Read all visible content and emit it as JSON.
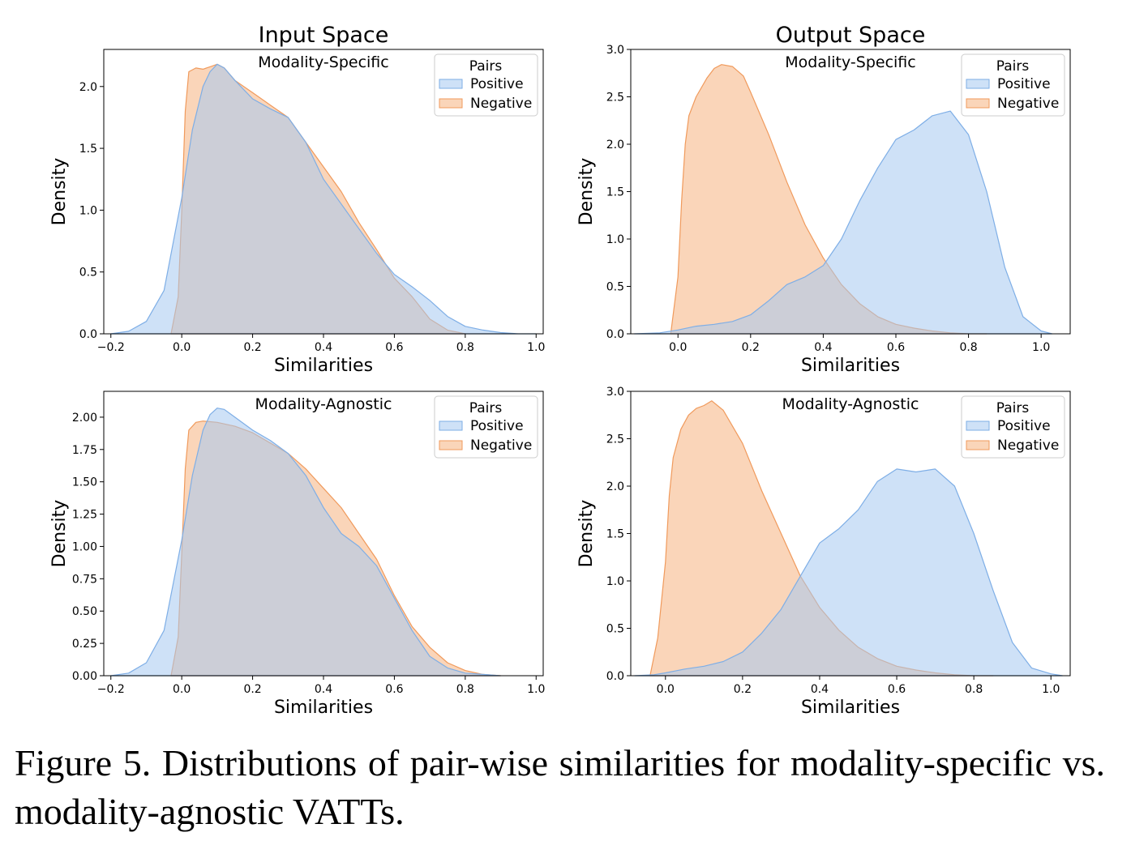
{
  "column_titles": [
    "Input Space",
    "Output Space"
  ],
  "caption": "Figure 5. Distributions of pair-wise similarities for modality-specific vs. modality-agnostic VATTs.",
  "colors": {
    "positive_fill": "#a6c8f0",
    "positive_edge": "#7eaee6",
    "negative_fill": "#f7b98a",
    "negative_edge": "#f09a5c"
  },
  "chart_data": [
    {
      "type": "area",
      "panel": "input-specific",
      "column_title": "Input Space",
      "title": "Modality-Specific",
      "xlabel": "Similarities",
      "ylabel": "Density",
      "xlim": [
        -0.22,
        1.02
      ],
      "ylim": [
        0,
        2.3
      ],
      "xticks": [
        -0.2,
        0.0,
        0.2,
        0.4,
        0.6,
        0.8,
        1.0
      ],
      "xtick_labels": [
        "−0.2",
        "0.0",
        "0.2",
        "0.4",
        "0.6",
        "0.8",
        "1.0"
      ],
      "yticks": [
        0.0,
        0.5,
        1.0,
        1.5,
        2.0
      ],
      "ytick_labels": [
        "0.0",
        "0.5",
        "1.0",
        "1.5",
        "2.0"
      ],
      "legend": {
        "title": "Pairs",
        "position": "upper right"
      },
      "series": [
        {
          "name": "Positive",
          "x": [
            -0.2,
            -0.15,
            -0.1,
            -0.05,
            0.0,
            0.03,
            0.06,
            0.08,
            0.1,
            0.12,
            0.15,
            0.2,
            0.25,
            0.3,
            0.35,
            0.4,
            0.45,
            0.5,
            0.55,
            0.6,
            0.65,
            0.7,
            0.75,
            0.8,
            0.85,
            0.9,
            0.95,
            1.0
          ],
          "y": [
            0.0,
            0.02,
            0.1,
            0.35,
            1.1,
            1.65,
            2.0,
            2.12,
            2.18,
            2.15,
            2.05,
            1.9,
            1.82,
            1.75,
            1.55,
            1.25,
            1.05,
            0.85,
            0.65,
            0.48,
            0.38,
            0.27,
            0.14,
            0.06,
            0.03,
            0.01,
            0.0,
            0.0
          ]
        },
        {
          "name": "Negative",
          "x": [
            -0.03,
            -0.01,
            0.0,
            0.01,
            0.02,
            0.04,
            0.06,
            0.08,
            0.1,
            0.12,
            0.15,
            0.2,
            0.25,
            0.3,
            0.35,
            0.4,
            0.45,
            0.5,
            0.55,
            0.6,
            0.65,
            0.7,
            0.75,
            0.8
          ],
          "y": [
            0.0,
            0.3,
            1.0,
            1.8,
            2.12,
            2.15,
            2.14,
            2.16,
            2.18,
            2.15,
            2.05,
            1.95,
            1.85,
            1.75,
            1.55,
            1.35,
            1.15,
            0.9,
            0.68,
            0.45,
            0.3,
            0.12,
            0.03,
            0.0
          ]
        }
      ]
    },
    {
      "type": "area",
      "panel": "output-specific",
      "column_title": "Output Space",
      "title": "Modality-Specific",
      "xlabel": "Similarities",
      "ylabel": "Density",
      "xlim": [
        -0.13,
        1.08
      ],
      "ylim": [
        0,
        3.0
      ],
      "xticks": [
        0.0,
        0.2,
        0.4,
        0.6,
        0.8,
        1.0
      ],
      "xtick_labels": [
        "0.0",
        "0.2",
        "0.4",
        "0.6",
        "0.8",
        "1.0"
      ],
      "yticks": [
        0.0,
        0.5,
        1.0,
        1.5,
        2.0,
        2.5,
        3.0
      ],
      "ytick_labels": [
        "0.0",
        "0.5",
        "1.0",
        "1.5",
        "2.0",
        "2.5",
        "3.0"
      ],
      "legend": {
        "title": "Pairs",
        "position": "upper right"
      },
      "series": [
        {
          "name": "Positive",
          "x": [
            -0.12,
            -0.05,
            0.0,
            0.05,
            0.1,
            0.15,
            0.2,
            0.25,
            0.3,
            0.35,
            0.4,
            0.45,
            0.5,
            0.55,
            0.6,
            0.65,
            0.7,
            0.75,
            0.8,
            0.85,
            0.9,
            0.95,
            1.0,
            1.03
          ],
          "y": [
            0.0,
            0.01,
            0.04,
            0.08,
            0.1,
            0.13,
            0.2,
            0.35,
            0.52,
            0.6,
            0.72,
            1.0,
            1.4,
            1.75,
            2.05,
            2.15,
            2.3,
            2.35,
            2.1,
            1.5,
            0.7,
            0.18,
            0.03,
            0.0
          ]
        },
        {
          "name": "Negative",
          "x": [
            -0.02,
            0.0,
            0.01,
            0.02,
            0.03,
            0.05,
            0.08,
            0.1,
            0.12,
            0.15,
            0.18,
            0.2,
            0.25,
            0.3,
            0.35,
            0.4,
            0.45,
            0.5,
            0.55,
            0.6,
            0.65,
            0.7,
            0.75,
            0.8,
            0.85
          ],
          "y": [
            0.0,
            0.6,
            1.4,
            2.0,
            2.3,
            2.5,
            2.7,
            2.8,
            2.84,
            2.82,
            2.72,
            2.55,
            2.1,
            1.6,
            1.15,
            0.8,
            0.52,
            0.32,
            0.18,
            0.1,
            0.06,
            0.03,
            0.01,
            0.0,
            0.0
          ]
        }
      ]
    },
    {
      "type": "area",
      "panel": "input-agnostic",
      "column_title": "Input Space",
      "title": "Modality-Agnostic",
      "xlabel": "Similarities",
      "ylabel": "Density",
      "xlim": [
        -0.22,
        1.02
      ],
      "ylim": [
        0,
        2.2
      ],
      "xticks": [
        -0.2,
        0.0,
        0.2,
        0.4,
        0.6,
        0.8,
        1.0
      ],
      "xtick_labels": [
        "−0.2",
        "0.0",
        "0.2",
        "0.4",
        "0.6",
        "0.8",
        "1.0"
      ],
      "yticks": [
        0.0,
        0.25,
        0.5,
        0.75,
        1.0,
        1.25,
        1.5,
        1.75,
        2.0
      ],
      "ytick_labels": [
        "0.00",
        "0.25",
        "0.50",
        "0.75",
        "1.00",
        "1.25",
        "1.50",
        "1.75",
        "2.00"
      ],
      "legend": {
        "title": "Pairs",
        "position": "upper right"
      },
      "series": [
        {
          "name": "Positive",
          "x": [
            -0.2,
            -0.15,
            -0.1,
            -0.05,
            0.0,
            0.03,
            0.06,
            0.08,
            0.1,
            0.12,
            0.15,
            0.2,
            0.25,
            0.3,
            0.35,
            0.4,
            0.45,
            0.5,
            0.55,
            0.6,
            0.65,
            0.7,
            0.75,
            0.8,
            0.85,
            0.9
          ],
          "y": [
            0.0,
            0.02,
            0.1,
            0.35,
            1.05,
            1.55,
            1.9,
            2.02,
            2.07,
            2.06,
            2.0,
            1.9,
            1.82,
            1.72,
            1.55,
            1.3,
            1.1,
            1.0,
            0.85,
            0.6,
            0.35,
            0.15,
            0.06,
            0.02,
            0.01,
            0.0
          ]
        },
        {
          "name": "Negative",
          "x": [
            -0.03,
            -0.01,
            0.0,
            0.01,
            0.02,
            0.04,
            0.06,
            0.1,
            0.15,
            0.2,
            0.25,
            0.3,
            0.35,
            0.4,
            0.45,
            0.5,
            0.55,
            0.6,
            0.65,
            0.7,
            0.75,
            0.8,
            0.85,
            0.9
          ],
          "y": [
            0.0,
            0.3,
            0.95,
            1.6,
            1.9,
            1.96,
            1.97,
            1.96,
            1.93,
            1.88,
            1.8,
            1.72,
            1.6,
            1.45,
            1.3,
            1.1,
            0.9,
            0.62,
            0.38,
            0.22,
            0.1,
            0.04,
            0.01,
            0.0
          ]
        }
      ]
    },
    {
      "type": "area",
      "panel": "output-agnostic",
      "column_title": "Output Space",
      "title": "Modality-Agnostic",
      "xlabel": "Similarities",
      "ylabel": "Density",
      "xlim": [
        -0.09,
        1.05
      ],
      "ylim": [
        0,
        3.0
      ],
      "xticks": [
        0.0,
        0.2,
        0.4,
        0.6,
        0.8,
        1.0
      ],
      "xtick_labels": [
        "0.0",
        "0.2",
        "0.4",
        "0.6",
        "0.8",
        "1.0"
      ],
      "yticks": [
        0.0,
        0.5,
        1.0,
        1.5,
        2.0,
        2.5,
        3.0
      ],
      "ytick_labels": [
        "0.0",
        "0.5",
        "1.0",
        "1.5",
        "2.0",
        "2.5",
        "3.0"
      ],
      "legend": {
        "title": "Pairs",
        "position": "upper right"
      },
      "series": [
        {
          "name": "Positive",
          "x": [
            -0.08,
            -0.03,
            0.0,
            0.05,
            0.1,
            0.15,
            0.2,
            0.25,
            0.3,
            0.35,
            0.4,
            0.45,
            0.5,
            0.55,
            0.6,
            0.65,
            0.7,
            0.75,
            0.8,
            0.85,
            0.9,
            0.95,
            1.0,
            1.03
          ],
          "y": [
            0.0,
            0.01,
            0.03,
            0.07,
            0.1,
            0.15,
            0.25,
            0.45,
            0.7,
            1.05,
            1.4,
            1.55,
            1.75,
            2.05,
            2.18,
            2.15,
            2.18,
            2.0,
            1.5,
            0.9,
            0.35,
            0.08,
            0.02,
            0.0
          ]
        },
        {
          "name": "Negative",
          "x": [
            -0.04,
            -0.02,
            0.0,
            0.01,
            0.02,
            0.04,
            0.06,
            0.08,
            0.1,
            0.12,
            0.15,
            0.2,
            0.25,
            0.3,
            0.35,
            0.4,
            0.45,
            0.5,
            0.55,
            0.6,
            0.65,
            0.7,
            0.75,
            0.8,
            0.85
          ],
          "y": [
            0.0,
            0.4,
            1.2,
            1.9,
            2.3,
            2.6,
            2.75,
            2.82,
            2.85,
            2.9,
            2.8,
            2.45,
            1.95,
            1.5,
            1.05,
            0.72,
            0.48,
            0.3,
            0.18,
            0.1,
            0.06,
            0.03,
            0.01,
            0.0,
            0.0
          ]
        }
      ]
    }
  ]
}
